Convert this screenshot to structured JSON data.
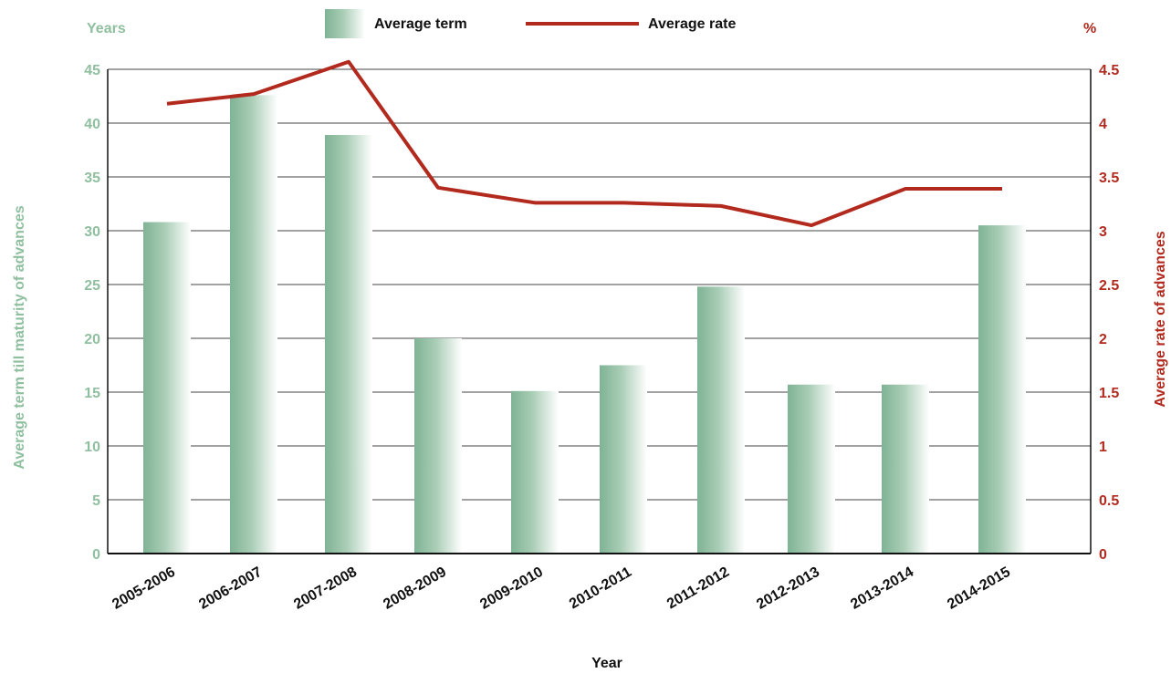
{
  "chart_data": {
    "type": "bar",
    "categories": [
      "2005-2006",
      "2006-2007",
      "2007-2008",
      "2008-2009",
      "2009-2010",
      "2010-2011",
      "2011-2012",
      "2012-2013",
      "2013-2014",
      "2014-2015"
    ],
    "xlabel": "Year",
    "y_left": {
      "unit_label": "Years",
      "label": "Average term till maturity of advances",
      "ylim": [
        0,
        45
      ],
      "ticks": [
        "0",
        "5",
        "10",
        "15",
        "20",
        "25",
        "30",
        "35",
        "40",
        "45"
      ]
    },
    "y_right": {
      "unit_label": "%",
      "label": "Average rate of advances",
      "ylim": [
        0,
        4.5
      ],
      "ticks": [
        "0",
        "0.5",
        "1",
        "1.5",
        "2",
        "2.5",
        "3",
        "3.5",
        "4",
        "4.5"
      ]
    },
    "series": [
      {
        "name": "Average term",
        "type": "bar",
        "axis": "left",
        "values": [
          30.8,
          42.6,
          38.9,
          20.0,
          15.1,
          17.5,
          24.8,
          15.7,
          15.7,
          30.5
        ]
      },
      {
        "name": "Average rate",
        "type": "line",
        "axis": "right",
        "values": [
          4.18,
          4.27,
          4.57,
          3.4,
          3.26,
          3.26,
          3.23,
          3.05,
          3.39,
          3.39
        ]
      }
    ],
    "grid": true,
    "legend": "top",
    "colors": {
      "bar": "#7fb395",
      "bar_light": "#ffffff",
      "line": "#b22a1e",
      "left_axis_text": "#8fbf9f",
      "right_axis_text": "#b22a1e",
      "axis": "#111111"
    }
  }
}
